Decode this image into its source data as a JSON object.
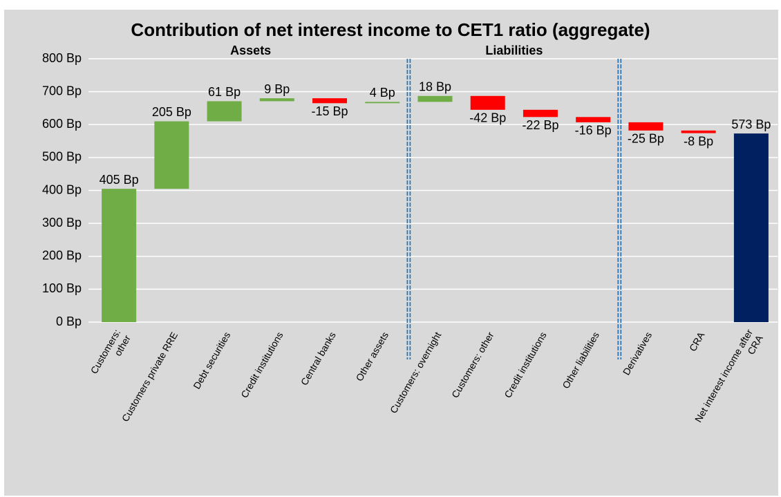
{
  "chart_data": {
    "type": "waterfall",
    "title": "Contribution of net interest income to CET1 ratio (aggregate)",
    "categories": [
      "Customers:\nother",
      "Customers private RRE",
      "Debt securities",
      "Credit institutions",
      "Central banks",
      "Other assets",
      "Customers: overnight",
      "Customers: other",
      "Credit institutions",
      "Other liabilities",
      "Derivatives",
      "CRA",
      "Net interest income after\nCRA"
    ],
    "values": [
      405,
      205,
      61,
      9,
      -15,
      4,
      18,
      -42,
      -22,
      -16,
      -25,
      -8,
      573
    ],
    "value_labels": [
      "405 Bp",
      "205 Bp",
      "61 Bp",
      "9 Bp",
      "-15 Bp",
      "4 Bp",
      "18 Bp",
      "-42 Bp",
      "-22 Bp",
      "-16 Bp",
      "-25 Bp",
      "-8 Bp",
      "573 Bp"
    ],
    "measure": [
      "relative",
      "relative",
      "relative",
      "relative",
      "relative",
      "relative",
      "relative",
      "relative",
      "relative",
      "relative",
      "relative",
      "relative",
      "total"
    ],
    "colors": {
      "increase": "#70ad47",
      "decrease": "#ff0000",
      "total": "#002060"
    },
    "sections": [
      {
        "label": "Assets",
        "start": 0,
        "end": 5
      },
      {
        "label": "Liabilities",
        "start": 6,
        "end": 9
      }
    ],
    "ylim": [
      0,
      800
    ],
    "yticks": [
      {
        "value": 0,
        "label": "0 Bp"
      },
      {
        "value": 100,
        "label": "100 Bp"
      },
      {
        "value": 200,
        "label": "200 Bp"
      },
      {
        "value": 300,
        "label": "300 Bp"
      },
      {
        "value": 400,
        "label": "400 Bp"
      },
      {
        "value": 500,
        "label": "500 Bp"
      },
      {
        "value": 600,
        "label": "600 Bp"
      },
      {
        "value": 700,
        "label": "700 Bp"
      },
      {
        "value": 800,
        "label": "800 Bp"
      }
    ],
    "grid": true
  }
}
